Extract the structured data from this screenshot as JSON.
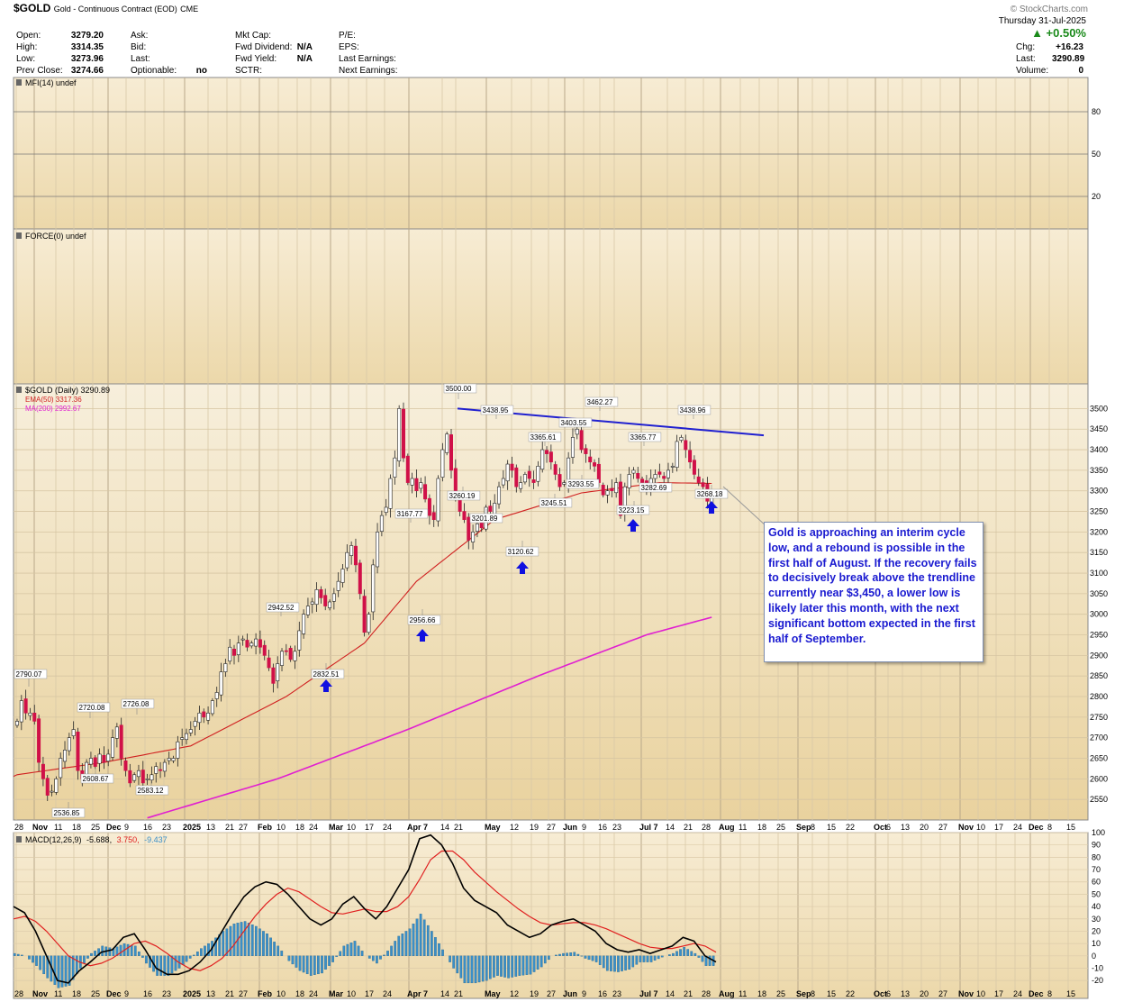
{
  "header": {
    "symbol": "$GOLD",
    "description": "Gold - Continuous Contract (EOD)",
    "exchange": "CME",
    "watermark": "© StockCharts.com",
    "date": "Thursday 31-Jul-2025",
    "change_pct": "▲ +0.50%",
    "up_color": "#1a8a1a",
    "left_block": [
      {
        "label": "Open:",
        "value": "3279.20"
      },
      {
        "label": "High:",
        "value": "3314.35"
      },
      {
        "label": "Low:",
        "value": "3273.96"
      },
      {
        "label": "Prev Close:",
        "value": "3274.66"
      }
    ],
    "mid_block": [
      {
        "label": "Ask:",
        "value": ""
      },
      {
        "label": "Bid:",
        "value": ""
      },
      {
        "label": "Last:",
        "value": ""
      },
      {
        "label": "Optionable:",
        "value": "no"
      }
    ],
    "mkt_block": [
      {
        "label": "Mkt Cap:",
        "value": ""
      },
      {
        "label": "Fwd Dividend:",
        "value": "N/A"
      },
      {
        "label": "Fwd Yield:",
        "value": "N/A"
      },
      {
        "label": "SCTR:",
        "value": ""
      }
    ],
    "pe_block": [
      {
        "label": "P/E:",
        "value": ""
      },
      {
        "label": "EPS:",
        "value": ""
      },
      {
        "label": "Last Earnings:",
        "value": ""
      },
      {
        "label": "Next Earnings:",
        "value": ""
      }
    ],
    "right_block": [
      {
        "label": "Chg:",
        "value": "+16.23"
      },
      {
        "label": "Last:",
        "value": "3290.89"
      },
      {
        "label": "Volume:",
        "value": "0"
      }
    ]
  },
  "panels": {
    "mfi_title": "MFI(14) undef",
    "force_title": "FORCE(0) undef",
    "price_title": "$GOLD (Daily) 3290.89",
    "ema_label": "EMA(50) 3317.36",
    "ma_label": "MA(200) 2992.67",
    "macd_title": "MACD(12,26,9)",
    "macd_value": "-5.688,",
    "signal_value": "3.750,",
    "hist_value": "-9.437"
  },
  "colors": {
    "price_bg_top": "#f6edd8",
    "price_bg_bottom": "#ead3a3",
    "panel_bg": "#f4e6c8",
    "up_candle": "#ffffff",
    "down_candle": "#d01048",
    "ema": "#d02020",
    "ma200": "#e020d0",
    "trendline": "#2020d0",
    "arrow": "#1010e0",
    "macd_line": "#000000",
    "signal_line": "#e02020",
    "histogram": "#3a8fc8"
  },
  "callout_text": "Gold is approaching an interim cycle low, and a rebound is possible in the first half of August. If the recovery fails to decisively break above the trendline currently near $3,450, a lower low is likely later this month, with the next significant bottom expected in the first half of September.",
  "chart_data": [
    {
      "type": "candlestick",
      "title": "$GOLD (Daily) 3290.89",
      "ylim": [
        2500,
        3560
      ],
      "y_ticks": [
        2550,
        2600,
        2650,
        2700,
        2750,
        2800,
        2850,
        2900,
        2950,
        3000,
        3050,
        3100,
        3150,
        3200,
        3250,
        3300,
        3350,
        3400,
        3450,
        3500
      ],
      "x_ticks": [
        "28",
        "Nov",
        "11",
        "18",
        "25",
        "Dec",
        "9",
        "16",
        "23",
        "2025",
        "13",
        "21",
        "27",
        "Feb",
        "10",
        "18",
        "24",
        "Mar",
        "10",
        "17",
        "24",
        "Apr 7",
        "14",
        "21",
        "May",
        "12",
        "19",
        "27",
        "Jun",
        "9",
        "16",
        "23",
        "Jul 7",
        "14",
        "21",
        "28",
        "Aug",
        "11",
        "18",
        "25",
        "Sep",
        "8",
        "15",
        "22",
        "Oct",
        "6",
        "13",
        "20",
        "27",
        "Nov",
        "10",
        "17",
        "24",
        "Dec",
        "8",
        "15"
      ],
      "close_path": [
        2740,
        2790,
        2760,
        2760,
        2740,
        2640,
        2600,
        2560,
        2570,
        2600,
        2650,
        2670,
        2700,
        2720,
        2620,
        2600,
        2640,
        2650,
        2630,
        2660,
        2640,
        2660,
        2700,
        2726,
        2650,
        2620,
        2590,
        2610,
        2620,
        2590,
        2600,
        2610,
        2630,
        2620,
        2640,
        2650,
        2650,
        2690,
        2700,
        2710,
        2720,
        2740,
        2760,
        2750,
        2760,
        2790,
        2810,
        2860,
        2880,
        2920,
        2900,
        2930,
        2940,
        2920,
        2930,
        2940,
        2920,
        2900,
        2870,
        2832,
        2880,
        2910,
        2910,
        2890,
        2910,
        2960,
        3000,
        3020,
        3030,
        3060,
        3040,
        3020,
        3030,
        3050,
        3080,
        3110,
        3150,
        3167,
        3120,
        3050,
        2956,
        3000,
        3120,
        3200,
        3240,
        3260,
        3330,
        3380,
        3500,
        3380,
        3320,
        3330,
        3300,
        3320,
        3280,
        3240,
        3230,
        3330,
        3400,
        3438,
        3350,
        3290,
        3250,
        3230,
        3180,
        3200,
        3220,
        3210,
        3260,
        3250,
        3270,
        3310,
        3330,
        3365,
        3350,
        3310,
        3320,
        3340,
        3330,
        3320,
        3360,
        3400,
        3390,
        3370,
        3340,
        3310,
        3320,
        3380,
        3430,
        3450,
        3400,
        3390,
        3370,
        3360,
        3320,
        3290,
        3300,
        3300,
        3320,
        3240,
        3310,
        3340,
        3350,
        3330,
        3320,
        3310,
        3330,
        3340,
        3340,
        3330,
        3350,
        3360,
        3420,
        3430,
        3400,
        3370,
        3340,
        3320,
        3310,
        3274.66,
        3290.89
      ],
      "ema50": {
        "start": 2606,
        "knots": [
          [
            0,
            2610
          ],
          [
            20,
            2640
          ],
          [
            40,
            2680
          ],
          [
            62,
            2800
          ],
          [
            80,
            2930
          ],
          [
            92,
            3080
          ],
          [
            110,
            3230
          ],
          [
            130,
            3295
          ],
          [
            148,
            3320
          ],
          [
            160,
            3318
          ]
        ]
      },
      "ma200": {
        "knots": [
          [
            30,
            2505
          ],
          [
            60,
            2600
          ],
          [
            90,
            2720
          ],
          [
            120,
            2850
          ],
          [
            145,
            2950
          ],
          [
            160,
            2992.67
          ]
        ]
      },
      "trendline": {
        "from": 3500,
        "to": 3435
      },
      "annotations": [
        "2790.07",
        "2536.85",
        "2720.08",
        "2608.67",
        "2726.08",
        "2583.12",
        "2942.52",
        "2832.51",
        "3167.77",
        "2956.66",
        "3500.00",
        "3260.19",
        "3438.95",
        "3201.89",
        "3120.62",
        "3365.61",
        "3245.51",
        "3403.55",
        "3293.55",
        "3462.27",
        "3223.15",
        "3365.77",
        "3282.69",
        "3438.96",
        "3268.18"
      ]
    },
    {
      "type": "line",
      "title": "MACD(12,26,9)",
      "ylim": [
        -25,
        100
      ],
      "y_ticks": [
        100,
        90,
        80,
        70,
        60,
        50,
        40,
        30,
        20,
        10,
        0,
        -10,
        -20
      ],
      "series": [
        {
          "name": "MACD",
          "values": [
            40,
            35,
            20,
            0,
            -20,
            -22,
            -12,
            -5,
            3,
            5,
            15,
            18,
            5,
            -10,
            -15,
            -15,
            -12,
            -5,
            5,
            20,
            35,
            48,
            56,
            60,
            58,
            50,
            40,
            30,
            25,
            30,
            42,
            48,
            38,
            30,
            40,
            55,
            70,
            95,
            98,
            90,
            75,
            55,
            45,
            40,
            35,
            25,
            20,
            15,
            18,
            25,
            28,
            30,
            25,
            20,
            10,
            5,
            3,
            5,
            2,
            5,
            8,
            15,
            12,
            0,
            -5
          ]
        },
        {
          "name": "Signal",
          "values": [
            30,
            32,
            28,
            20,
            10,
            0,
            -5,
            -8,
            -6,
            -2,
            4,
            10,
            12,
            8,
            2,
            -5,
            -10,
            -12,
            -8,
            -2,
            8,
            20,
            32,
            42,
            50,
            55,
            52,
            46,
            40,
            35,
            34,
            36,
            38,
            36,
            36,
            40,
            48,
            62,
            78,
            85,
            85,
            78,
            68,
            60,
            52,
            45,
            38,
            32,
            27,
            25,
            26,
            27,
            27,
            25,
            22,
            18,
            14,
            10,
            7,
            6,
            6,
            8,
            10,
            8,
            3
          ]
        },
        {
          "name": "Histogram",
          "values": [
            2,
            0,
            -8,
            -18,
            -26,
            -24,
            -10,
            2,
            8,
            6,
            10,
            8,
            -6,
            -16,
            -16,
            -10,
            -2,
            6,
            12,
            20,
            26,
            28,
            24,
            18,
            8,
            -4,
            -12,
            -16,
            -14,
            -5,
            8,
            12,
            0,
            -6,
            4,
            16,
            22,
            34,
            20,
            5,
            -10,
            -22,
            -22,
            -20,
            -16,
            -18,
            -16,
            -15,
            -9,
            0,
            2,
            3,
            -2,
            -5,
            -12,
            -13,
            -11,
            -5,
            -5,
            -1,
            2,
            7,
            2,
            -8,
            -8
          ]
        }
      ]
    }
  ]
}
